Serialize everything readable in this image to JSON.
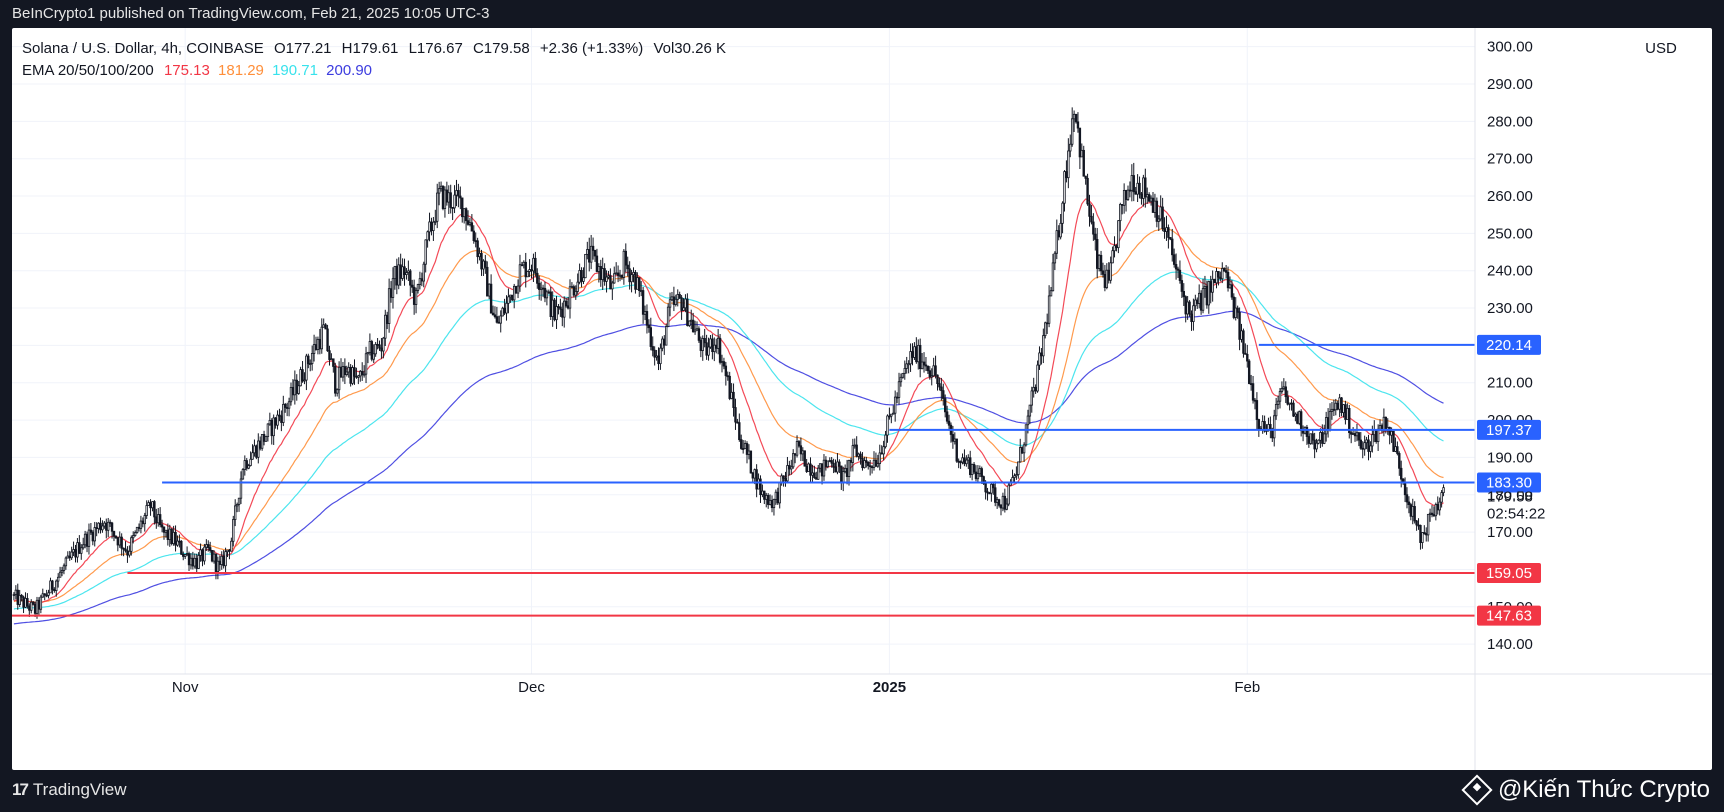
{
  "topbar": {
    "text": "BeInCrypto1 published on TradingView.com, Feb 21, 2025 10:05 UTC-3"
  },
  "legend": {
    "symbol": "Solana / U.S. Dollar, 4h, COINBASE",
    "open": "O177.21",
    "high": "H179.61",
    "low": "L176.67",
    "close": "C179.58",
    "change": "+2.36 (+1.33%)",
    "volume": "Vol30.26 K",
    "ema_label": "EMA 20/50/100/200",
    "ema20": "175.13",
    "ema50": "181.29",
    "ema100": "190.71",
    "ema200": "200.90"
  },
  "currency": "USD",
  "countdown": "02:54:22",
  "colors": {
    "ema20": "#f23645",
    "ema50": "#ff8f3a",
    "ema100": "#38e2ec",
    "ema200": "#3c3cdf",
    "resistance": "#2962ff",
    "support": "#f23645",
    "candle": "#131722"
  },
  "bottombar": {
    "brand": "TradingView",
    "watermark": "@Kiến Thức Crypto"
  },
  "chart_data": {
    "type": "candlestick",
    "title": "Solana / U.S. Dollar, 4h, COINBASE",
    "ylim": [
      132,
      305
    ],
    "y_ticks": [
      "300.00",
      "290.00",
      "280.00",
      "270.00",
      "260.00",
      "250.00",
      "240.00",
      "230.00",
      "220.00",
      "210.00",
      "200.00",
      "190.00",
      "180.00",
      "170.00",
      "160.00",
      "150.00",
      "140.00"
    ],
    "x_ticks": [
      {
        "label": "Nov",
        "day": 19,
        "bold": false
      },
      {
        "label": "Dec",
        "day": 49,
        "bold": false
      },
      {
        "label": "2025",
        "day": 80,
        "bold": true
      },
      {
        "label": "Feb",
        "day": 111,
        "bold": false
      }
    ],
    "x_range_days": [
      4,
      127
    ],
    "price_path": [
      [
        4,
        153
      ],
      [
        6,
        149
      ],
      [
        8,
        158
      ],
      [
        10,
        167
      ],
      [
        12,
        173
      ],
      [
        14,
        165
      ],
      [
        16,
        177
      ],
      [
        17,
        170
      ],
      [
        18,
        168
      ],
      [
        19,
        164
      ],
      [
        20,
        162
      ],
      [
        21,
        165
      ],
      [
        22,
        160
      ],
      [
        23,
        168
      ],
      [
        24,
        188
      ],
      [
        26,
        196
      ],
      [
        28,
        205
      ],
      [
        30,
        218
      ],
      [
        31,
        224
      ],
      [
        32,
        210
      ],
      [
        33,
        214
      ],
      [
        34,
        210
      ],
      [
        35,
        218
      ],
      [
        36,
        220
      ],
      [
        37,
        238
      ],
      [
        38,
        240
      ],
      [
        39,
        232
      ],
      [
        40,
        248
      ],
      [
        41,
        260
      ],
      [
        43,
        258
      ],
      [
        44,
        250
      ],
      [
        45,
        238
      ],
      [
        46,
        225
      ],
      [
        47,
        232
      ],
      [
        48,
        240
      ],
      [
        49,
        242
      ],
      [
        50,
        236
      ],
      [
        51,
        228
      ],
      [
        52,
        232
      ],
      [
        53,
        238
      ],
      [
        54,
        244
      ],
      [
        55,
        240
      ],
      [
        56,
        235
      ],
      [
        57,
        242
      ],
      [
        58,
        238
      ],
      [
        59,
        226
      ],
      [
        60,
        215
      ],
      [
        61,
        230
      ],
      [
        62,
        232
      ],
      [
        63,
        225
      ],
      [
        64,
        218
      ],
      [
        65,
        222
      ],
      [
        66,
        210
      ],
      [
        67,
        196
      ],
      [
        68,
        188
      ],
      [
        69,
        180
      ],
      [
        70,
        178
      ],
      [
        71,
        185
      ],
      [
        72,
        192
      ],
      [
        73,
        188
      ],
      [
        74,
        186
      ],
      [
        75,
        190
      ],
      [
        76,
        184
      ],
      [
        77,
        192
      ],
      [
        78,
        188
      ],
      [
        79,
        190
      ],
      [
        80,
        200
      ],
      [
        81,
        210
      ],
      [
        82,
        218
      ],
      [
        83,
        216
      ],
      [
        84,
        212
      ],
      [
        85,
        200
      ],
      [
        86,
        190
      ],
      [
        87,
        188
      ],
      [
        88,
        184
      ],
      [
        89,
        180
      ],
      [
        90,
        178
      ],
      [
        91,
        186
      ],
      [
        92,
        200
      ],
      [
        93,
        215
      ],
      [
        94,
        235
      ],
      [
        95,
        260
      ],
      [
        96,
        285
      ],
      [
        97,
        262
      ],
      [
        98,
        242
      ],
      [
        99,
        236
      ],
      [
        100,
        255
      ],
      [
        101,
        265
      ],
      [
        102,
        262
      ],
      [
        103,
        258
      ],
      [
        104,
        250
      ],
      [
        105,
        238
      ],
      [
        106,
        228
      ],
      [
        107,
        232
      ],
      [
        108,
        236
      ],
      [
        109,
        240
      ],
      [
        110,
        228
      ],
      [
        111,
        215
      ],
      [
        112,
        200
      ],
      [
        113,
        196
      ],
      [
        114,
        208
      ],
      [
        115,
        202
      ],
      [
        116,
        198
      ],
      [
        117,
        192
      ],
      [
        118,
        200
      ],
      [
        119,
        205
      ],
      [
        120,
        198
      ],
      [
        121,
        192
      ],
      [
        122,
        196
      ],
      [
        123,
        200
      ],
      [
        124,
        190
      ],
      [
        125,
        178
      ],
      [
        126,
        168
      ],
      [
        127,
        175
      ],
      [
        128,
        180
      ]
    ],
    "ema_legend": [
      "EMA 20",
      "EMA 50",
      "EMA 100",
      "EMA 200"
    ],
    "levels": [
      {
        "label": "220.14",
        "value": 220.14,
        "kind": "resistance",
        "start_day": 112
      },
      {
        "label": "197.37",
        "value": 197.37,
        "kind": "resistance",
        "start_day": 80
      },
      {
        "label": "183.30",
        "value": 183.3,
        "kind": "resistance",
        "start_day": 17
      },
      {
        "label": "159.05",
        "value": 159.05,
        "kind": "support",
        "start_day": 14
      },
      {
        "label": "147.63",
        "value": 147.63,
        "kind": "support",
        "start_day": 4
      }
    ],
    "last_price": {
      "label": "179.58",
      "value": 179.58
    }
  }
}
